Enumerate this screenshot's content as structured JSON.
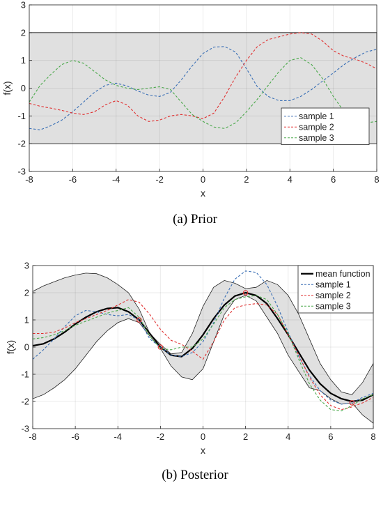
{
  "chart_data": [
    {
      "type": "line",
      "caption": "(a) Prior",
      "xlabel": "x",
      "ylabel": "f(x)",
      "xlim": [
        -8,
        8
      ],
      "ylim": [
        -3,
        3
      ],
      "xticks": [
        -8,
        -6,
        -4,
        -2,
        0,
        2,
        4,
        6,
        8
      ],
      "yticks": [
        -3,
        -2,
        -1,
        0,
        1,
        2,
        3
      ],
      "grid": true,
      "legend_position": "bottom-right",
      "band": {
        "x": [
          -8,
          8
        ],
        "lower": [
          -2,
          -2
        ],
        "upper": [
          2,
          2
        ],
        "color": "#e0e0e0"
      },
      "series": [
        {
          "name": "sample 1",
          "color": "#3a6fb5",
          "style": "dashed",
          "x": [
            -8,
            -7.5,
            -7,
            -6.5,
            -6,
            -5.5,
            -5,
            -4.5,
            -4,
            -3.5,
            -3,
            -2.5,
            -2,
            -1.5,
            -1,
            -0.5,
            0,
            0.5,
            1,
            1.5,
            2,
            2.5,
            3,
            3.5,
            4,
            4.5,
            5,
            5.5,
            6,
            6.5,
            7,
            7.5,
            8
          ],
          "y": [
            -1.45,
            -1.5,
            -1.35,
            -1.15,
            -0.85,
            -0.5,
            -0.15,
            0.1,
            0.18,
            0.08,
            -0.1,
            -0.25,
            -0.3,
            -0.15,
            0.3,
            0.8,
            1.25,
            1.48,
            1.5,
            1.3,
            0.7,
            0.05,
            -0.3,
            -0.45,
            -0.45,
            -0.3,
            -0.05,
            0.25,
            0.55,
            0.85,
            1.1,
            1.3,
            1.4
          ]
        },
        {
          "name": "sample 2",
          "color": "#e03030",
          "style": "dashed",
          "x": [
            -8,
            -7.5,
            -7,
            -6.5,
            -6,
            -5.5,
            -5,
            -4.5,
            -4,
            -3.5,
            -3,
            -2.5,
            -2,
            -1.5,
            -1,
            -0.5,
            0,
            0.5,
            1,
            1.5,
            2,
            2.5,
            3,
            3.5,
            4,
            4.5,
            5,
            5.5,
            6,
            6.5,
            7,
            7.5,
            8
          ],
          "y": [
            -0.55,
            -0.65,
            -0.72,
            -0.8,
            -0.9,
            -0.95,
            -0.85,
            -0.6,
            -0.45,
            -0.6,
            -1.0,
            -1.2,
            -1.15,
            -1.0,
            -0.95,
            -1.0,
            -1.1,
            -0.9,
            -0.3,
            0.4,
            1.0,
            1.5,
            1.75,
            1.85,
            1.95,
            2.0,
            1.95,
            1.7,
            1.35,
            1.15,
            1.05,
            0.9,
            0.7
          ]
        },
        {
          "name": "sample 3",
          "color": "#4aa84a",
          "style": "dashed",
          "x": [
            -8,
            -7.5,
            -7,
            -6.5,
            -6,
            -5.5,
            -5,
            -4.5,
            -4,
            -3.5,
            -3,
            -2.5,
            -2,
            -1.5,
            -1,
            -0.5,
            0,
            0.5,
            1,
            1.5,
            2,
            2.5,
            3,
            3.5,
            4,
            4.5,
            5,
            5.5,
            6,
            6.5,
            7,
            7.5,
            8
          ],
          "y": [
            -0.5,
            0.1,
            0.5,
            0.85,
            1.0,
            0.9,
            0.6,
            0.3,
            0.1,
            0.0,
            -0.05,
            0.0,
            0.05,
            -0.05,
            -0.5,
            -0.95,
            -1.2,
            -1.4,
            -1.45,
            -1.25,
            -0.85,
            -0.4,
            0.1,
            0.6,
            1.0,
            1.1,
            0.85,
            0.35,
            -0.3,
            -0.85,
            -1.15,
            -1.25,
            -1.2
          ]
        }
      ]
    },
    {
      "type": "line",
      "caption": "(b) Posterior",
      "xlabel": "x",
      "ylabel": "f(x)",
      "xlim": [
        -8,
        8
      ],
      "ylim": [
        -3,
        3
      ],
      "xticks": [
        -8,
        -6,
        -4,
        -2,
        0,
        2,
        4,
        6,
        8
      ],
      "yticks": [
        -3,
        -2,
        -1,
        0,
        1,
        2,
        3
      ],
      "grid": true,
      "legend_position": "top-right",
      "band": {
        "x": [
          -8,
          -7.5,
          -7,
          -6.5,
          -6,
          -5.5,
          -5,
          -4.5,
          -4,
          -3.5,
          -3,
          -2.5,
          -2,
          -1.5,
          -1,
          -0.5,
          0,
          0.5,
          1,
          1.5,
          2,
          2.5,
          3,
          3.5,
          4,
          4.5,
          5,
          5.5,
          6,
          6.5,
          7,
          7.5,
          8
        ],
        "lower": [
          -1.9,
          -1.75,
          -1.5,
          -1.2,
          -0.8,
          -0.3,
          0.2,
          0.6,
          0.9,
          1.05,
          0.9,
          0.4,
          -0.05,
          -0.7,
          -1.1,
          -1.2,
          -0.8,
          0.2,
          1.2,
          1.75,
          1.9,
          1.7,
          1.1,
          0.5,
          -0.3,
          -0.9,
          -1.5,
          -1.6,
          -1.9,
          -2.1,
          -2.05,
          -2.5,
          -2.8
        ],
        "upper": [
          2.05,
          2.25,
          2.4,
          2.55,
          2.65,
          2.72,
          2.7,
          2.55,
          2.3,
          2.0,
          1.4,
          0.5,
          0.1,
          -0.25,
          -0.2,
          0.5,
          1.5,
          2.2,
          2.45,
          2.35,
          2.15,
          2.2,
          2.45,
          2.3,
          1.9,
          1.2,
          0.3,
          -0.6,
          -1.2,
          -1.65,
          -1.75,
          -1.3,
          -0.6
        ],
        "color": "#e0e0e0"
      },
      "observations": {
        "x": [
          -3,
          -2,
          2,
          7
        ],
        "y": [
          1.0,
          0.0,
          2.0,
          -2.05
        ],
        "color": "#e03030"
      },
      "series": [
        {
          "name": "mean function",
          "color": "#000000",
          "style": "solid",
          "x": [
            -8,
            -7.5,
            -7,
            -6.5,
            -6,
            -5.5,
            -5,
            -4.5,
            -4,
            -3.5,
            -3,
            -2.5,
            -2,
            -1.5,
            -1,
            -0.5,
            0,
            0.5,
            1,
            1.5,
            2,
            2.5,
            3,
            3.5,
            4,
            4.5,
            5,
            5.5,
            6,
            6.5,
            7,
            7.5,
            8
          ],
          "y": [
            0.05,
            0.12,
            0.3,
            0.55,
            0.85,
            1.1,
            1.3,
            1.42,
            1.45,
            1.3,
            1.0,
            0.5,
            0.0,
            -0.3,
            -0.35,
            -0.05,
            0.45,
            1.05,
            1.55,
            1.88,
            2.0,
            1.9,
            1.6,
            1.05,
            0.45,
            -0.2,
            -0.85,
            -1.35,
            -1.7,
            -1.9,
            -2.0,
            -1.95,
            -1.75
          ]
        },
        {
          "name": "sample 1",
          "color": "#3a6fb5",
          "style": "dashed",
          "x": [
            -8,
            -7.5,
            -7,
            -6.5,
            -6,
            -5.5,
            -5,
            -4.5,
            -4,
            -3.5,
            -3,
            -2.5,
            -2,
            -1.5,
            -1,
            -0.5,
            0,
            0.5,
            1,
            1.5,
            2,
            2.5,
            3,
            3.5,
            4,
            4.5,
            5,
            5.5,
            6,
            6.5,
            7,
            7.5,
            8
          ],
          "y": [
            -0.45,
            -0.1,
            0.3,
            0.75,
            1.15,
            1.35,
            1.3,
            1.2,
            1.15,
            1.2,
            1.0,
            0.3,
            0.0,
            -0.3,
            -0.35,
            -0.2,
            0.2,
            0.9,
            1.8,
            2.5,
            2.8,
            2.75,
            2.3,
            1.5,
            0.55,
            -0.35,
            -1.05,
            -1.6,
            -1.95,
            -2.1,
            -2.05,
            -1.85,
            -1.7
          ]
        },
        {
          "name": "sample 2",
          "color": "#e03030",
          "style": "dashed",
          "x": [
            -8,
            -7.5,
            -7,
            -6.5,
            -6,
            -5.5,
            -5,
            -4.5,
            -4,
            -3.5,
            -3,
            -2.5,
            -2,
            -1.5,
            -1,
            -0.5,
            0,
            0.5,
            1,
            1.5,
            2,
            2.5,
            3,
            3.5,
            4,
            4.5,
            5,
            5.5,
            6,
            6.5,
            7,
            7.5,
            8
          ],
          "y": [
            0.5,
            0.5,
            0.55,
            0.7,
            0.9,
            1.05,
            1.2,
            1.35,
            1.55,
            1.75,
            1.65,
            1.2,
            0.65,
            0.25,
            0.1,
            -0.15,
            -0.45,
            0.2,
            1.0,
            1.45,
            1.55,
            1.6,
            1.55,
            1.2,
            0.45,
            -0.3,
            -1.1,
            -1.75,
            -2.15,
            -2.3,
            -2.2,
            -2.05,
            -1.85
          ]
        },
        {
          "name": "sample 3",
          "color": "#4aa84a",
          "style": "dashed",
          "x": [
            -8,
            -7.5,
            -7,
            -6.5,
            -6,
            -5.5,
            -5,
            -4.5,
            -4,
            -3.5,
            -3,
            -2.5,
            -2,
            -1.5,
            -1,
            -0.5,
            0,
            0.5,
            1,
            1.5,
            2,
            2.5,
            3,
            3.5,
            4,
            4.5,
            5,
            5.5,
            6,
            6.5,
            7,
            7.5,
            8
          ],
          "y": [
            0.3,
            0.35,
            0.45,
            0.6,
            0.8,
            0.95,
            1.1,
            1.25,
            1.35,
            1.45,
            1.1,
            0.4,
            -0.05,
            -0.1,
            0.0,
            0.0,
            0.3,
            0.85,
            1.45,
            1.75,
            1.85,
            1.9,
            1.75,
            1.2,
            0.5,
            -0.45,
            -1.35,
            -1.95,
            -2.3,
            -2.35,
            -2.15,
            -1.9,
            -1.75
          ]
        }
      ]
    }
  ]
}
